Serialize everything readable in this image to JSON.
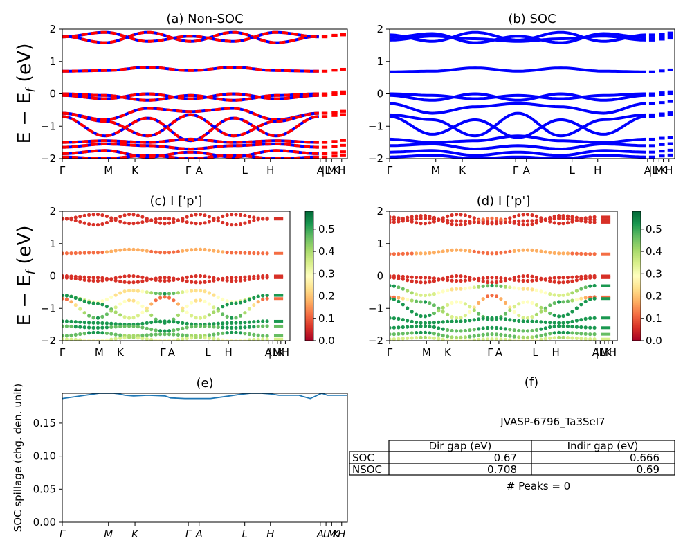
{
  "chart_data": [
    {
      "id": "a",
      "type": "line",
      "title": "(a) Non-SOC",
      "ylabel": "E − E_f (eV)",
      "ylabel_main": "E − E",
      "ylabel_sub": "f",
      "ylabel_unit": " (eV)",
      "ylim": [
        -2,
        2
      ],
      "yticks": [
        "2",
        "1",
        "0",
        "−1",
        "−2"
      ],
      "xticks": [
        "Γ",
        "M",
        "K",
        "Γ",
        "A",
        "L",
        "H",
        "A",
        "|L",
        "M",
        "K",
        "H"
      ],
      "series_colors": [
        "#ff0000",
        "#0000ff"
      ],
      "bands": [
        {
          "levels": [
            1.78,
            1.58,
            1.9,
            1.62,
            1.9,
            1.58,
            1.78
          ]
        },
        {
          "levels": [
            1.76,
            1.9,
            1.62,
            1.78,
            1.62,
            1.9,
            1.76
          ]
        },
        {
          "levels": [
            0.7,
            0.72,
            0.82,
            0.72,
            0.82,
            0.72,
            0.7
          ]
        },
        {
          "levels": [
            0.0,
            -0.05,
            -0.2,
            -0.05,
            -0.2,
            -0.05,
            0.0
          ]
        },
        {
          "levels": [
            -0.05,
            -0.15,
            0.0,
            -0.15,
            0.0,
            -0.15,
            -0.05
          ]
        },
        {
          "levels": [
            -0.6,
            -0.8,
            -0.45,
            -0.55,
            -0.45,
            -0.8,
            -0.6
          ]
        },
        {
          "levels": [
            -0.6,
            -0.85,
            -1.3,
            -0.65,
            -1.3,
            -0.85,
            -0.6
          ]
        },
        {
          "levels": [
            -0.7,
            -1.3,
            -0.75,
            -1.45,
            -0.75,
            -1.3,
            -0.7
          ]
        },
        {
          "levels": [
            -1.5,
            -1.45,
            -1.5,
            -1.4,
            -1.5,
            -1.45,
            -1.5
          ]
        },
        {
          "levels": [
            -1.65,
            -1.55,
            -1.6,
            -1.7,
            -1.6,
            -1.55,
            -1.65
          ]
        },
        {
          "levels": [
            -1.85,
            -1.75,
            -1.95,
            -1.8,
            -1.95,
            -1.75,
            -1.85
          ]
        },
        {
          "levels": [
            -1.95,
            -2.0,
            -1.9,
            -2.0,
            -1.9,
            -2.0,
            -1.95
          ]
        }
      ]
    },
    {
      "id": "b",
      "type": "line",
      "title": "(b) SOC",
      "ylim": [
        -2,
        2
      ],
      "yticks": [
        "2",
        "1",
        "0",
        "−1",
        "−2"
      ],
      "xticks": [
        "Γ",
        "M",
        "K",
        "Γ",
        "A",
        "L",
        "H",
        "A",
        "|L",
        "M",
        "K",
        "H"
      ],
      "series_colors": [
        "#0000ff"
      ],
      "bands": [
        {
          "levels": [
            1.82,
            1.62,
            1.9,
            1.66,
            1.9,
            1.62,
            1.82
          ]
        },
        {
          "levels": [
            1.74,
            1.86,
            1.58,
            1.78,
            1.58,
            1.86,
            1.74
          ]
        },
        {
          "levels": [
            1.66,
            1.78,
            1.7,
            1.62,
            1.7,
            1.78,
            1.66
          ]
        },
        {
          "levels": [
            0.68,
            0.7,
            0.8,
            0.7,
            0.8,
            0.7,
            0.68
          ]
        },
        {
          "levels": [
            0.0,
            -0.05,
            -0.15,
            -0.05,
            -0.15,
            -0.05,
            0.0
          ]
        },
        {
          "levels": [
            -0.05,
            -0.2,
            0.0,
            -0.2,
            0.0,
            -0.2,
            -0.05
          ]
        },
        {
          "levels": [
            -0.3,
            -0.6,
            -0.4,
            -0.3,
            -0.4,
            -0.6,
            -0.3
          ]
        },
        {
          "levels": [
            -0.65,
            -0.8,
            -1.3,
            -0.6,
            -1.3,
            -0.8,
            -0.65
          ]
        },
        {
          "levels": [
            -0.7,
            -1.25,
            -0.8,
            -1.35,
            -0.8,
            -1.25,
            -0.7
          ]
        },
        {
          "levels": [
            -1.4,
            -1.5,
            -1.45,
            -1.3,
            -1.45,
            -1.5,
            -1.4
          ]
        },
        {
          "levels": [
            -1.6,
            -1.55,
            -1.7,
            -1.6,
            -1.7,
            -1.55,
            -1.6
          ]
        },
        {
          "levels": [
            -1.8,
            -1.75,
            -1.9,
            -1.8,
            -1.9,
            -1.75,
            -1.8
          ]
        },
        {
          "levels": [
            -1.95,
            -1.9,
            -2.0,
            -1.95,
            -2.0,
            -1.9,
            -1.95
          ]
        }
      ]
    },
    {
      "id": "c",
      "type": "scatter",
      "title": "(c)  I ['p']",
      "ylabel": "E − E_f (eV)",
      "ylabel_main": "E − E",
      "ylabel_sub": "f",
      "ylabel_unit": " (eV)",
      "ylim": [
        -2,
        2
      ],
      "yticks": [
        "2",
        "1",
        "0",
        "−1",
        "−2"
      ],
      "xticks": [
        "Γ",
        "M",
        "K",
        "Γ",
        "A",
        "L",
        "H",
        "A",
        "|L",
        "M",
        "K",
        "H"
      ],
      "colorbar": {
        "min": 0.0,
        "max": 0.58,
        "ticks": [
          "0.0",
          "0.1",
          "0.2",
          "0.3",
          "0.4",
          "0.5"
        ],
        "colormap": "RdYlGn"
      },
      "bands": [
        {
          "levels": [
            1.78,
            1.58,
            1.9,
            1.62,
            1.9,
            1.58,
            1.78
          ],
          "weights": [
            0.05,
            0.05,
            0.08,
            0.05,
            0.08,
            0.05,
            0.05
          ]
        },
        {
          "levels": [
            1.76,
            1.9,
            1.62,
            1.78,
            1.62,
            1.9,
            1.76
          ],
          "weights": [
            0.07,
            0.06,
            0.08,
            0.07,
            0.08,
            0.06,
            0.07
          ]
        },
        {
          "levels": [
            0.7,
            0.72,
            0.82,
            0.72,
            0.82,
            0.72,
            0.7
          ],
          "weights": [
            0.12,
            0.14,
            0.18,
            0.12,
            0.18,
            0.14,
            0.12
          ]
        },
        {
          "levels": [
            0.0,
            -0.05,
            -0.2,
            -0.05,
            -0.2,
            -0.05,
            0.0
          ],
          "weights": [
            0.08,
            0.06,
            0.05,
            0.06,
            0.05,
            0.06,
            0.08
          ]
        },
        {
          "levels": [
            -0.05,
            -0.15,
            0.0,
            -0.15,
            0.0,
            -0.15,
            -0.05
          ],
          "weights": [
            0.05,
            0.05,
            0.07,
            0.05,
            0.07,
            0.05,
            0.05
          ]
        },
        {
          "levels": [
            -0.6,
            -0.8,
            -0.45,
            -0.55,
            -0.45,
            -0.8,
            -0.6
          ],
          "weights": [
            0.5,
            0.3,
            0.22,
            0.5,
            0.22,
            0.3,
            0.5
          ]
        },
        {
          "levels": [
            -0.6,
            -0.85,
            -1.3,
            -0.65,
            -1.3,
            -0.85,
            -0.6
          ],
          "weights": [
            0.52,
            0.55,
            0.35,
            0.1,
            0.35,
            0.55,
            0.52
          ]
        },
        {
          "levels": [
            -0.7,
            -1.3,
            -0.75,
            -1.45,
            -0.75,
            -1.3,
            -0.7
          ],
          "weights": [
            0.12,
            0.5,
            0.25,
            0.5,
            0.25,
            0.5,
            0.12
          ]
        },
        {
          "levels": [
            -1.4,
            -1.45,
            -1.5,
            -1.4,
            -1.5,
            -1.45,
            -1.4
          ],
          "weights": [
            0.52,
            0.5,
            0.54,
            0.52,
            0.54,
            0.5,
            0.52
          ]
        },
        {
          "levels": [
            -1.55,
            -1.6,
            -1.55,
            -1.7,
            -1.55,
            -1.6,
            -1.55
          ],
          "weights": [
            0.48,
            0.52,
            0.45,
            0.5,
            0.45,
            0.52,
            0.48
          ]
        },
        {
          "levels": [
            -1.85,
            -1.75,
            -1.85,
            -1.8,
            -1.85,
            -1.75,
            -1.85
          ],
          "weights": [
            0.45,
            0.5,
            0.42,
            0.48,
            0.42,
            0.5,
            0.45
          ]
        },
        {
          "levels": [
            -1.95,
            -2.0,
            -1.9,
            -2.0,
            -1.9,
            -2.0,
            -1.95
          ],
          "weights": [
            0.35,
            0.3,
            0.38,
            0.3,
            0.38,
            0.3,
            0.35
          ]
        }
      ]
    },
    {
      "id": "d",
      "type": "scatter",
      "title": "(d) I ['p']",
      "ylim": [
        -2,
        2
      ],
      "yticks": [
        "2",
        "1",
        "0",
        "−1",
        "−2"
      ],
      "xticks": [
        "Γ",
        "M",
        "K",
        "Γ",
        "A",
        "L",
        "H",
        "A",
        "|L",
        "M",
        "K",
        "H"
      ],
      "colorbar": {
        "min": 0.0,
        "max": 0.58,
        "ticks": [
          "0.0",
          "0.1",
          "0.2",
          "0.3",
          "0.4",
          "0.5"
        ],
        "colormap": "RdYlGn"
      },
      "bands": [
        {
          "levels": [
            1.82,
            1.62,
            1.9,
            1.66,
            1.9,
            1.62,
            1.82
          ],
          "weights": [
            0.05,
            0.06,
            0.08,
            0.05,
            0.08,
            0.06,
            0.05
          ]
        },
        {
          "levels": [
            1.74,
            1.86,
            1.58,
            1.78,
            1.58,
            1.86,
            1.74
          ],
          "weights": [
            0.07,
            0.06,
            0.08,
            0.1,
            0.08,
            0.06,
            0.07
          ]
        },
        {
          "levels": [
            1.66,
            1.78,
            1.7,
            1.62,
            1.7,
            1.78,
            1.66
          ],
          "weights": [
            0.06,
            0.08,
            0.07,
            0.06,
            0.07,
            0.08,
            0.06
          ]
        },
        {
          "levels": [
            0.68,
            0.7,
            0.8,
            0.7,
            0.8,
            0.7,
            0.68
          ],
          "weights": [
            0.12,
            0.15,
            0.18,
            0.1,
            0.18,
            0.15,
            0.12
          ]
        },
        {
          "levels": [
            0.0,
            -0.05,
            -0.15,
            -0.05,
            -0.15,
            -0.05,
            0.0
          ],
          "weights": [
            0.08,
            0.06,
            0.05,
            0.06,
            0.05,
            0.06,
            0.08
          ]
        },
        {
          "levels": [
            -0.05,
            -0.2,
            0.0,
            -0.2,
            0.0,
            -0.2,
            -0.05
          ],
          "weights": [
            0.05,
            0.05,
            0.07,
            0.05,
            0.07,
            0.05,
            0.05
          ]
        },
        {
          "levels": [
            -0.3,
            -0.6,
            -0.4,
            -0.3,
            -0.4,
            -0.6,
            -0.3
          ],
          "weights": [
            0.5,
            0.35,
            0.25,
            0.5,
            0.25,
            0.35,
            0.5
          ]
        },
        {
          "levels": [
            -0.65,
            -0.8,
            -1.3,
            -0.6,
            -1.3,
            -0.8,
            -0.65
          ],
          "weights": [
            0.1,
            0.5,
            0.35,
            0.12,
            0.35,
            0.5,
            0.1
          ]
        },
        {
          "levels": [
            -0.7,
            -1.25,
            -0.8,
            -1.35,
            -0.8,
            -1.25,
            -0.7
          ],
          "weights": [
            0.5,
            0.52,
            0.3,
            0.52,
            0.3,
            0.52,
            0.5
          ]
        },
        {
          "levels": [
            -1.3,
            -1.45,
            -1.4,
            -1.3,
            -1.4,
            -1.45,
            -1.3
          ],
          "weights": [
            0.52,
            0.5,
            0.54,
            0.5,
            0.54,
            0.5,
            0.52
          ]
        },
        {
          "levels": [
            -1.6,
            -1.55,
            -1.7,
            -1.6,
            -1.7,
            -1.55,
            -1.6
          ],
          "weights": [
            0.5,
            0.52,
            0.48,
            0.5,
            0.48,
            0.52,
            0.5
          ]
        },
        {
          "levels": [
            -1.8,
            -1.75,
            -1.9,
            -1.8,
            -1.9,
            -1.75,
            -1.8
          ],
          "weights": [
            0.45,
            0.5,
            0.42,
            0.48,
            0.42,
            0.5,
            0.45
          ]
        },
        {
          "levels": [
            -1.95,
            -1.9,
            -2.0,
            -1.95,
            -2.0,
            -1.9,
            -1.95
          ],
          "weights": [
            0.35,
            0.38,
            0.3,
            0.36,
            0.3,
            0.38,
            0.35
          ]
        }
      ]
    },
    {
      "id": "e",
      "type": "line",
      "title": "(e)",
      "ylabel": "SOC spillage (chg. den. unit)",
      "ylim": [
        0.0,
        0.195
      ],
      "yticks": [
        "0.15",
        "0.10",
        "0.05",
        "0.00"
      ],
      "ytick_values": [
        0.15,
        0.1,
        0.05,
        0.0
      ],
      "xticks": [
        "Γ",
        "M",
        "K",
        "Γ",
        "A",
        "L",
        "H",
        "A",
        "L",
        "M",
        "K",
        "H"
      ],
      "color": "#1f77b4",
      "x": [
        0,
        0.08,
        0.13,
        0.18,
        0.2,
        0.22,
        0.25,
        0.3,
        0.36,
        0.38,
        0.43,
        0.52,
        0.57,
        0.62,
        0.66,
        0.7,
        0.73,
        0.76,
        0.83,
        0.845,
        0.87,
        0.91,
        0.93,
        1.0
      ],
      "values": [
        0.187,
        0.192,
        0.195,
        0.195,
        0.194,
        0.192,
        0.191,
        0.192,
        0.191,
        0.188,
        0.187,
        0.187,
        0.19,
        0.193,
        0.195,
        0.195,
        0.194,
        0.192,
        0.192,
        0.19,
        0.187,
        0.195,
        0.192,
        0.192
      ]
    }
  ],
  "table_panel": {
    "title": "(f)",
    "jid": "JVASP-6796_Ta3SeI7",
    "columns": [
      "Dir gap (eV)",
      "Indir gap (eV)"
    ],
    "rows": [
      {
        "label": "SOC",
        "dir": "0.67",
        "indir": "0.666"
      },
      {
        "label": "NSOC",
        "dir": "0.708",
        "indir": "0.69"
      }
    ],
    "peaks": "# Peaks = 0"
  }
}
